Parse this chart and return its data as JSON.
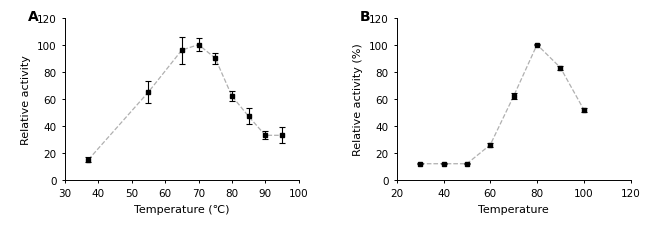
{
  "panel_A": {
    "label": "A",
    "x": [
      37,
      55,
      65,
      70,
      75,
      80,
      85,
      90,
      95
    ],
    "y": [
      15,
      65,
      96,
      100,
      90,
      62,
      47,
      33,
      33
    ],
    "yerr": [
      2,
      8,
      10,
      5,
      4,
      4,
      6,
      3,
      6
    ],
    "xlabel": "Temperature (℃)",
    "ylabel": "Relative activity",
    "xlim": [
      30,
      100
    ],
    "ylim": [
      0,
      120
    ],
    "xticks": [
      30,
      40,
      50,
      60,
      70,
      80,
      90,
      100
    ],
    "yticks": [
      0,
      20,
      40,
      60,
      80,
      100,
      120
    ]
  },
  "panel_B": {
    "label": "B",
    "x": [
      30,
      40,
      50,
      60,
      70,
      80,
      90,
      100
    ],
    "y": [
      12,
      12,
      12,
      26,
      62,
      100,
      83,
      52
    ],
    "yerr": [
      0.5,
      0.5,
      0.5,
      1.5,
      2,
      0.5,
      1.5,
      1.5
    ],
    "xlabel": "Temperature",
    "ylabel": "Relative activity (%)",
    "xlim": [
      20,
      120
    ],
    "ylim": [
      0,
      120
    ],
    "xticks": [
      20,
      40,
      60,
      80,
      100,
      120
    ],
    "yticks": [
      0,
      20,
      40,
      60,
      80,
      100,
      120
    ]
  },
  "marker": "s",
  "marker_size": 3.5,
  "marker_color": "black",
  "line_color": "#b0b0b0",
  "line_style": "--",
  "line_width": 0.9,
  "label_font_size": 8,
  "tick_font_size": 7.5,
  "panel_label_fontsize": 10
}
